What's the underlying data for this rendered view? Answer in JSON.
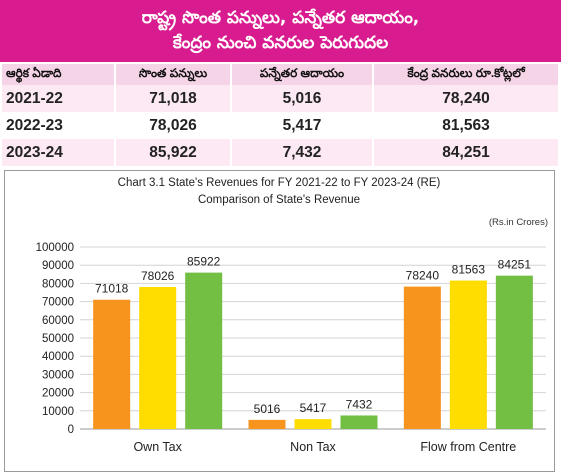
{
  "banner": {
    "line1": "రాష్ట్ర సొంత పన్నులు, పన్నేతర ఆదాయం,",
    "line2": "కేంద్రం నుంచి వనరుల పెరుగుదల"
  },
  "table": {
    "headers": [
      "ఆర్థిక ఏడాది",
      "సొంత పన్నులు",
      "పన్నేతర ఆదాయం",
      "కేంద్ర వనరులు రూ.కోట్లలో"
    ],
    "rows": [
      [
        "2021-22",
        "71,018",
        "5,016",
        "78,240"
      ],
      [
        "2022-23",
        "78,026",
        "5,417",
        "81,563"
      ],
      [
        "2023-24",
        "85,922",
        "7,432",
        "84,251"
      ]
    ]
  },
  "chart_data": {
    "type": "bar",
    "title": "Chart 3.1 State's Revenues for FY 2021-22 to FY 2023-24 (RE)",
    "subtitle": "Comparison of State's Revenue",
    "unit": "(Rs.in Crores)",
    "categories": [
      "Own Tax",
      "Non Tax",
      "Flow from Centre"
    ],
    "series": [
      {
        "values": [
          71018,
          5016,
          78240
        ],
        "color": "#f7941d"
      },
      {
        "values": [
          78026,
          5417,
          81563
        ],
        "color": "#ffdd00"
      },
      {
        "values": [
          85922,
          7432,
          84251
        ],
        "color": "#72bf44"
      }
    ],
    "ylim": [
      0,
      100000
    ],
    "yticks": [
      0,
      10000,
      20000,
      30000,
      40000,
      50000,
      60000,
      70000,
      80000,
      90000,
      100000
    ],
    "grid": true
  }
}
